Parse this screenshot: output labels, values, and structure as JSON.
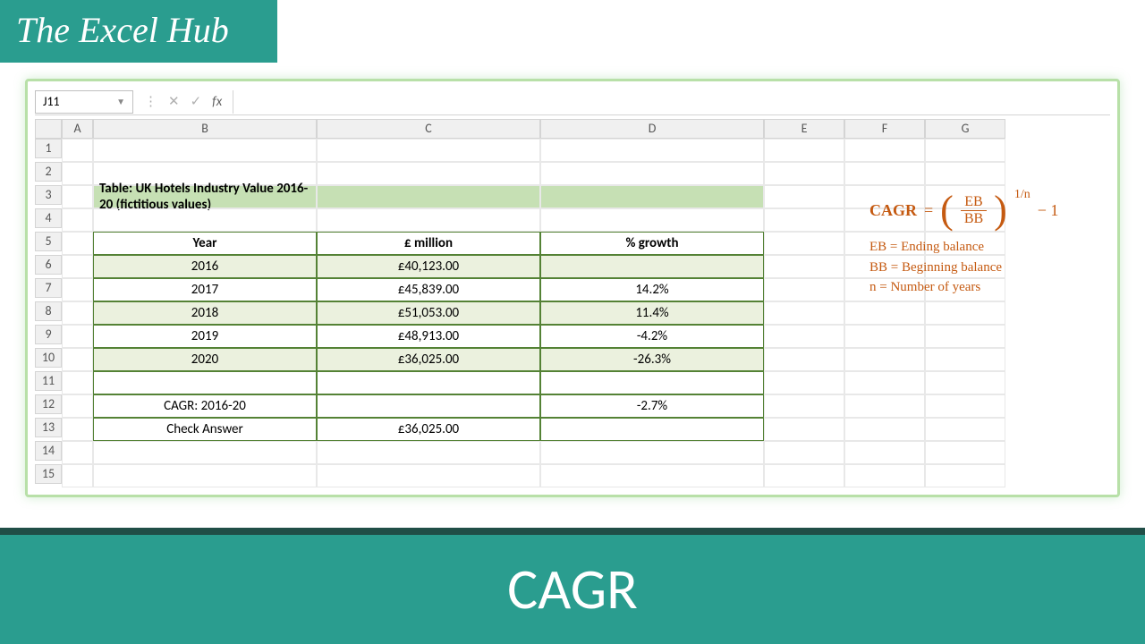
{
  "branding": {
    "site_title": "The Excel Hub",
    "footer_title": "CAGR"
  },
  "excel": {
    "selected_cell": "J11",
    "fx_symbol": "fx",
    "columns": [
      "A",
      "B",
      "C",
      "D",
      "E",
      "F",
      "G"
    ],
    "row_count": 15,
    "table_title": "Table: UK Hotels Industry Value 2016-20 (fictitious values)",
    "headers": {
      "col_b": "Year",
      "col_c": "£ million",
      "col_d": "% growth"
    },
    "data_rows": [
      {
        "year": "2016",
        "value": "£40,123.00",
        "growth": "",
        "alt": true
      },
      {
        "year": "2017",
        "value": "£45,839.00",
        "growth": "14.2%",
        "alt": false
      },
      {
        "year": "2018",
        "value": "£51,053.00",
        "growth": "11.4%",
        "alt": true
      },
      {
        "year": "2019",
        "value": "£48,913.00",
        "growth": "-4.2%",
        "alt": false
      },
      {
        "year": "2020",
        "value": "£36,025.00",
        "growth": "-26.3%",
        "alt": true
      }
    ],
    "summary": {
      "cagr_label": "CAGR: 2016-20",
      "cagr_value": "-2.7%",
      "check_label": "Check Answer",
      "check_value": "£36,025.00"
    }
  },
  "formula": {
    "lhs": "CAGR",
    "equals": "=",
    "frac_num": "EB",
    "frac_den": "BB",
    "exponent": "1/n",
    "minus_one": "− 1",
    "legend_eb": "EB = Ending balance",
    "legend_bb": "BB = Beginning balance",
    "legend_n": "n = Number of years"
  },
  "styling": {
    "brand_green": "#2a9d8f",
    "dark_green_border": "#548235",
    "title_fill": "#c6e0b4",
    "alt_row_fill": "#ebf1de",
    "formula_color": "#c55a11"
  }
}
